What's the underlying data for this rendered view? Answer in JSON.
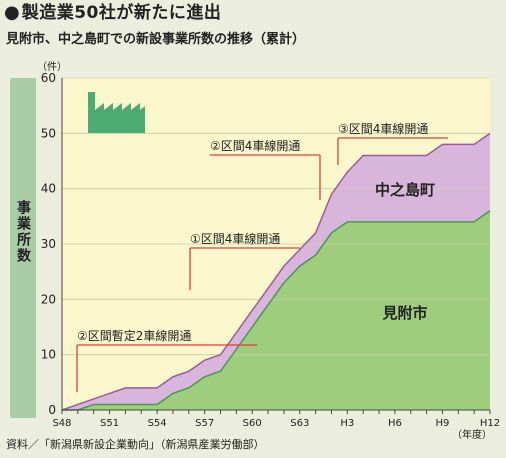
{
  "header": {
    "title": "製造業50社が新たに進出",
    "subtitle": "見附市、中之島町での新設事業所数の推移（累計）"
  },
  "source_note": "資料／「新潟県新設企業動向」（新潟県産業労働部）",
  "colors": {
    "background": "#eceedd",
    "plot_background": "#fbf7cc",
    "mitsuke_fill": "#9fcd7e",
    "mitsuke_line": "#3f9e46",
    "nakanoshima_fill": "#d8b6dc",
    "nakanoshima_line": "#9b5aa4",
    "annotation_line": "#d6443b",
    "factory_icon": "#4cab70",
    "side_bar": "#a9cca4"
  },
  "icons": [
    "factory-icon"
  ],
  "chart_data": {
    "type": "area",
    "stacked": true,
    "y_unit": "（件）",
    "x_unit": "（年度）",
    "ylabel": "事業所数",
    "ylim": [
      0,
      60
    ],
    "yticks": [
      0,
      10,
      20,
      30,
      40,
      50,
      60
    ],
    "grid": true,
    "xtick_labels": [
      "S48",
      "S51",
      "S54",
      "S57",
      "S60",
      "S63",
      "H3",
      "H6",
      "H9",
      "H12"
    ],
    "years": [
      "S48",
      "S49",
      "S50",
      "S51",
      "S52",
      "S53",
      "S54",
      "S55",
      "S56",
      "S57",
      "S58",
      "S59",
      "S60",
      "S61",
      "S62",
      "S63",
      "H1",
      "H2",
      "H3",
      "H4",
      "H5",
      "H6",
      "H7",
      "H8",
      "H9",
      "H10",
      "H11",
      "H12"
    ],
    "series": [
      {
        "name": "見附市",
        "values": [
          0,
          0,
          1,
          1,
          1,
          1,
          1,
          3,
          4,
          6,
          7,
          11,
          15,
          19,
          23,
          26,
          28,
          32,
          34,
          34,
          34,
          34,
          34,
          34,
          34,
          34,
          34,
          36
        ]
      },
      {
        "name": "中之島町",
        "values": [
          0,
          1,
          1,
          2,
          3,
          3,
          3,
          3,
          3,
          3,
          3,
          3,
          3,
          3,
          3,
          3,
          4,
          7,
          9,
          12,
          12,
          12,
          12,
          12,
          14,
          14,
          14,
          14
        ]
      }
    ],
    "annotations": [
      {
        "label": "②区間暫定2車線開通",
        "year": "S48"
      },
      {
        "label": "①区間4車線開通",
        "year": "S57"
      },
      {
        "label": "②区間4車線開通",
        "year": "H2"
      },
      {
        "label": "③区間4車線開通",
        "year": "H4"
      }
    ]
  }
}
